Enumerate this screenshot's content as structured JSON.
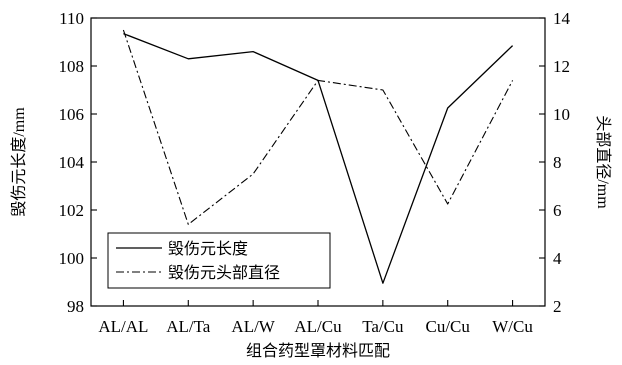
{
  "chart_data": {
    "type": "line",
    "categories": [
      "AL/AL",
      "AL/Ta",
      "AL/W",
      "AL/Cu",
      "Ta/Cu",
      "Cu/Cu",
      "W/Cu"
    ],
    "xlabel": "组合药型罩材料匹配",
    "ylabel": "毁伤元长度/mm",
    "y2label": "头部直径/mm",
    "ylim": [
      98,
      110
    ],
    "y2lim": [
      2,
      14
    ],
    "yticks": [
      98,
      100,
      102,
      104,
      106,
      108,
      110
    ],
    "y2ticks": [
      2,
      4,
      6,
      8,
      10,
      12,
      14
    ],
    "grid": false,
    "legend_position": "lower-left",
    "series": [
      {
        "name": "毁伤元长度",
        "axis": "left",
        "line_style": "solid",
        "values": [
          109.35,
          108.3,
          108.6,
          107.4,
          98.95,
          106.25,
          108.85
        ]
      },
      {
        "name": "毁伤元头部直径",
        "axis": "right",
        "line_style": "dash-dot",
        "values": [
          13.5,
          5.4,
          7.5,
          11.4,
          11.0,
          6.25,
          11.4
        ]
      }
    ],
    "colors": {
      "line": "#000000",
      "axis": "#000000",
      "background": "#ffffff"
    }
  }
}
